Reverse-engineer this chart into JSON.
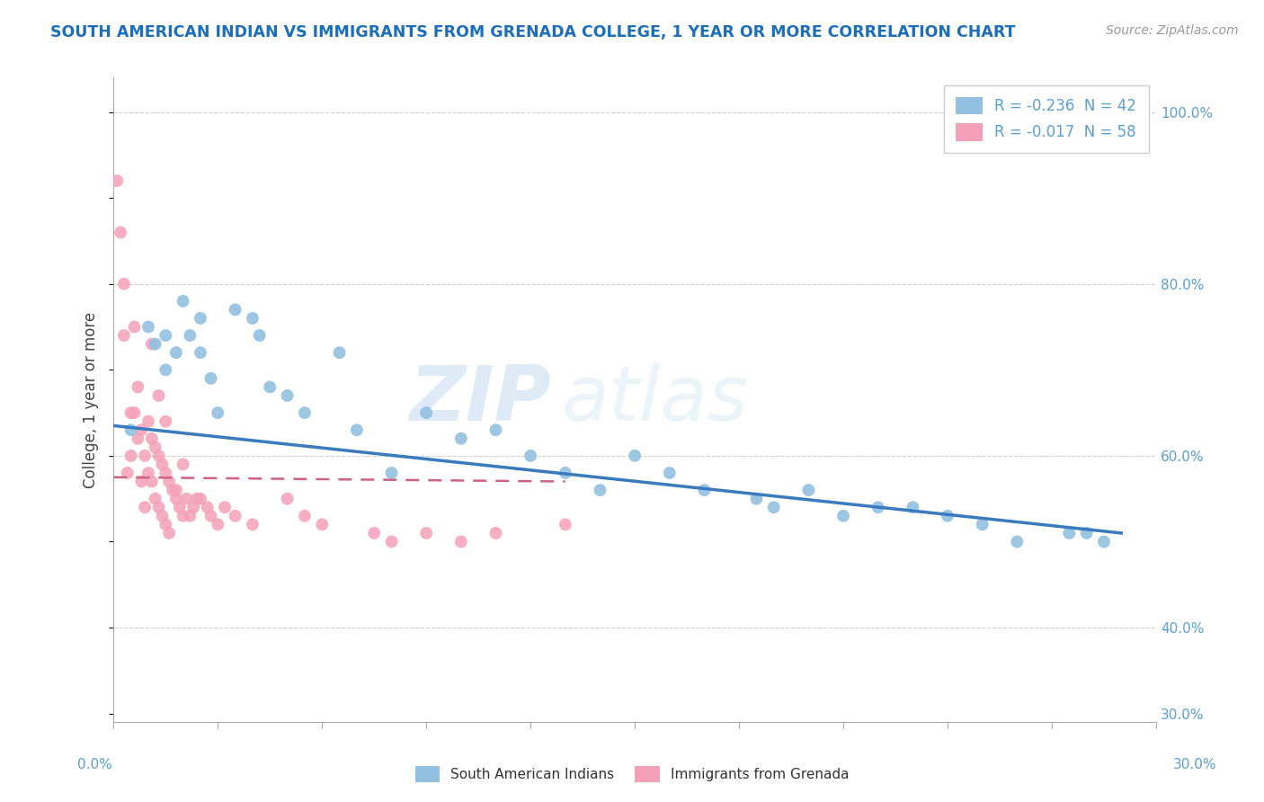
{
  "title": "SOUTH AMERICAN INDIAN VS IMMIGRANTS FROM GRENADA COLLEGE, 1 YEAR OR MORE CORRELATION CHART",
  "source_text": "Source: ZipAtlas.com",
  "ylabel": "College, 1 year or more",
  "xmin": 0.0,
  "xmax": 30.0,
  "ymin": 29.0,
  "ymax": 104.0,
  "legend_blue_text": "R = -0.236  N = 42",
  "legend_pink_text": "R = -0.017  N = 58",
  "legend_label_blue": "South American Indians",
  "legend_label_pink": "Immigrants from Grenada",
  "blue_color": "#92c0e0",
  "pink_color": "#f4a0b8",
  "blue_line_color": "#3a7bbf",
  "pink_line_color": "#d06080",
  "title_color": "#1a6ebd",
  "axis_color": "#5a9fd4",
  "watermark_zip": "ZIP",
  "watermark_atlas": "atlas",
  "grid_color": "#cccccc",
  "bg_color": "#ffffff",
  "right_tick_vals": [
    30,
    40,
    60,
    80,
    100
  ],
  "right_tick_labels": [
    "30.0%",
    "40.0%",
    "60.0%",
    "80.0%",
    "100.0%"
  ],
  "blue_scatter_x": [
    0.5,
    1.0,
    1.2,
    1.5,
    1.5,
    1.8,
    2.0,
    2.2,
    2.5,
    2.5,
    2.8,
    3.0,
    3.5,
    4.0,
    4.2,
    4.5,
    5.0,
    5.5,
    6.5,
    7.0,
    8.0,
    9.0,
    10.0,
    11.0,
    12.0,
    13.0,
    14.0,
    15.0,
    16.0,
    17.0,
    18.5,
    19.0,
    21.0,
    23.0,
    25.0,
    26.0,
    27.5,
    28.0,
    28.5,
    24.0,
    20.0,
    22.0
  ],
  "blue_scatter_y": [
    63,
    75,
    73,
    70,
    74,
    72,
    78,
    74,
    76,
    72,
    69,
    65,
    77,
    76,
    74,
    68,
    67,
    65,
    72,
    63,
    58,
    65,
    62,
    63,
    60,
    58,
    56,
    60,
    58,
    56,
    55,
    54,
    53,
    54,
    52,
    50,
    51,
    51,
    50,
    53,
    56,
    54
  ],
  "pink_scatter_x": [
    0.1,
    0.2,
    0.3,
    0.4,
    0.5,
    0.5,
    0.6,
    0.7,
    0.7,
    0.8,
    0.8,
    0.9,
    0.9,
    1.0,
    1.0,
    1.1,
    1.1,
    1.2,
    1.2,
    1.3,
    1.3,
    1.4,
    1.4,
    1.5,
    1.5,
    1.6,
    1.6,
    1.7,
    1.8,
    1.9,
    2.0,
    2.1,
    2.2,
    2.3,
    2.5,
    2.7,
    2.8,
    3.0,
    3.2,
    3.5,
    4.0,
    5.0,
    5.5,
    6.0,
    7.5,
    8.0,
    9.0,
    10.0,
    11.0,
    13.0,
    0.3,
    0.6,
    1.1,
    1.3,
    1.5,
    1.8,
    2.0,
    2.4
  ],
  "pink_scatter_y": [
    92,
    86,
    80,
    58,
    65,
    60,
    65,
    62,
    68,
    63,
    57,
    60,
    54,
    64,
    58,
    62,
    57,
    61,
    55,
    60,
    54,
    59,
    53,
    58,
    52,
    57,
    51,
    56,
    55,
    54,
    53,
    55,
    53,
    54,
    55,
    54,
    53,
    52,
    54,
    53,
    52,
    55,
    53,
    52,
    51,
    50,
    51,
    50,
    51,
    52,
    74,
    75,
    73,
    67,
    64,
    56,
    59,
    55
  ],
  "blue_trend_x": [
    0.0,
    29.0
  ],
  "blue_trend_y": [
    63.5,
    51.0
  ],
  "pink_trend_x": [
    0.0,
    13.0
  ],
  "pink_trend_y": [
    57.5,
    57.0
  ]
}
